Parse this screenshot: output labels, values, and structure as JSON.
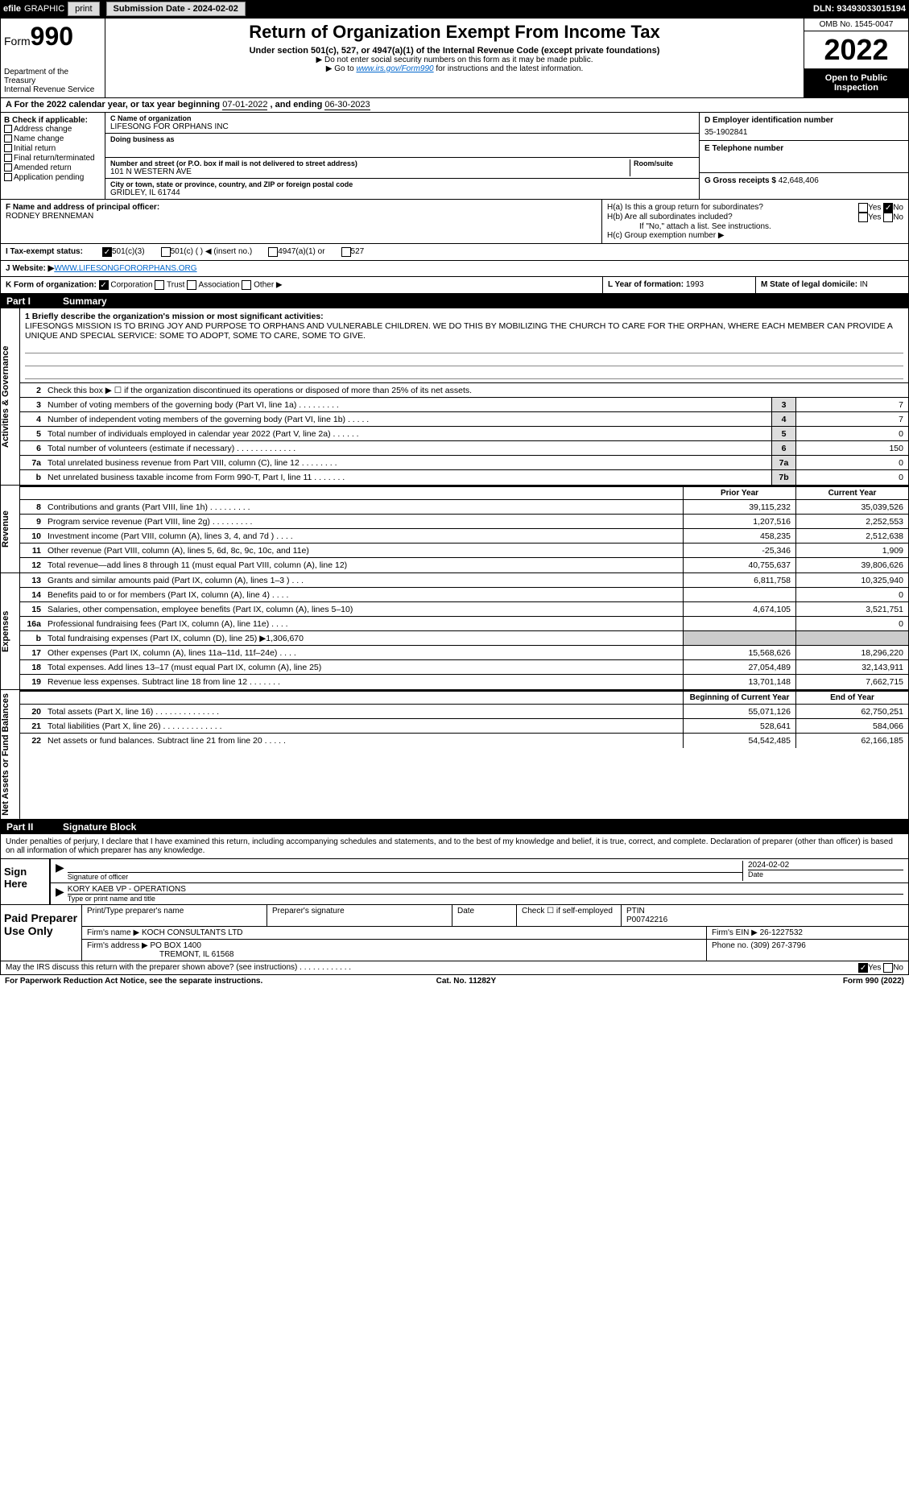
{
  "topbar": {
    "efile": "efile",
    "graphic": "GRAPHIC",
    "print": "print",
    "submission": "Submission Date - 2024-02-02",
    "dln": "DLN: 93493033015194"
  },
  "header": {
    "form_label": "Form",
    "form_num": "990",
    "dept": "Department of the Treasury",
    "irs": "Internal Revenue Service",
    "title": "Return of Organization Exempt From Income Tax",
    "subtitle": "Under section 501(c), 527, or 4947(a)(1) of the Internal Revenue Code (except private foundations)",
    "note1": "▶ Do not enter social security numbers on this form as it may be made public.",
    "note2_pre": "▶ Go to ",
    "note2_link": "www.irs.gov/Form990",
    "note2_post": " for instructions and the latest information.",
    "omb": "OMB No. 1545-0047",
    "year": "2022",
    "open": "Open to Public Inspection"
  },
  "row_a": {
    "label": "A For the 2022 calendar year, or tax year beginning ",
    "begin": "07-01-2022",
    "mid": "     , and ending ",
    "end": "06-30-2023"
  },
  "col_b": {
    "label": "B Check if applicable:",
    "opts": [
      "Address change",
      "Name change",
      "Initial return",
      "Final return/terminated",
      "Amended return",
      "Application pending"
    ]
  },
  "col_c": {
    "name_label": "C Name of organization",
    "name": "LIFESONG FOR ORPHANS INC",
    "dba_label": "Doing business as",
    "dba": "",
    "addr_label": "Number and street (or P.O. box if mail is not delivered to street address)",
    "room_label": "Room/suite",
    "addr": "101 N WESTERN AVE",
    "city_label": "City or town, state or province, country, and ZIP or foreign postal code",
    "city": "GRIDLEY, IL  61744"
  },
  "col_d": {
    "ein_label": "D Employer identification number",
    "ein": "35-1902841",
    "phone_label": "E Telephone number",
    "phone": "",
    "gross_label": "G Gross receipts $",
    "gross": "42,648,406"
  },
  "row_f": {
    "label": "F  Name and address of principal officer:",
    "name": "RODNEY BRENNEMAN"
  },
  "row_h": {
    "ha": "H(a)  Is this a group return for subordinates?",
    "hb": "H(b)  Are all subordinates included?",
    "hb_note": "If \"No,\" attach a list. See instructions.",
    "hc": "H(c)  Group exemption number ▶",
    "yes": "Yes",
    "no": "No"
  },
  "row_i": {
    "label": "I  Tax-exempt status:",
    "o1": "501(c)(3)",
    "o2": "501(c) (   ) ◀ (insert no.)",
    "o3": "4947(a)(1) or",
    "o4": "527"
  },
  "row_j": {
    "label": "J  Website: ▶ ",
    "url": "WWW.LIFESONGFORORPHANS.ORG"
  },
  "row_k": {
    "label": "K Form of organization:",
    "o1": "Corporation",
    "o2": "Trust",
    "o3": "Association",
    "o4": "Other ▶"
  },
  "row_l": {
    "label": "L Year of formation:",
    "val": "1993"
  },
  "row_m": {
    "label": "M State of legal domicile:",
    "val": "IN"
  },
  "part1": {
    "num": "Part I",
    "title": "Summary"
  },
  "side": {
    "ag": "Activities & Governance",
    "rev": "Revenue",
    "exp": "Expenses",
    "net": "Net Assets or Fund Balances"
  },
  "mission": {
    "label": "1   Briefly describe the organization's mission or most significant activities:",
    "text": "LIFESONGS MISSION IS TO BRING JOY AND PURPOSE TO ORPHANS AND VULNERABLE CHILDREN. WE DO THIS BY MOBILIZING THE CHURCH TO CARE FOR THE ORPHAN, WHERE EACH MEMBER CAN PROVIDE A UNIQUE AND SPECIAL SERVICE: SOME TO ADOPT, SOME TO CARE, SOME TO GIVE."
  },
  "lines_gov": [
    {
      "n": "2",
      "t": "Check this box ▶ ☐  if the organization discontinued its operations or disposed of more than 25% of its net assets."
    },
    {
      "n": "3",
      "t": "Number of voting members of the governing body (Part VI, line 1a)   .    .    .    .    .    .    .    .    .",
      "b": "3",
      "v": "7"
    },
    {
      "n": "4",
      "t": "Number of independent voting members of the governing body (Part VI, line 1b)   .    .    .    .    .",
      "b": "4",
      "v": "7"
    },
    {
      "n": "5",
      "t": "Total number of individuals employed in calendar year 2022 (Part V, line 2a)   .    .    .    .    .    .",
      "b": "5",
      "v": "0"
    },
    {
      "n": "6",
      "t": "Total number of volunteers (estimate if necessary)    .    .    .    .    .    .    .    .    .    .    .    .    .",
      "b": "6",
      "v": "150"
    },
    {
      "n": "7a",
      "t": "Total unrelated business revenue from Part VIII, column (C), line 12   .    .    .    .    .    .    .    .",
      "b": "7a",
      "v": "0"
    },
    {
      "n": "b",
      "t": "Net unrelated business taxable income from Form 990-T, Part I, line 11    .    .    .    .    .    .    .",
      "b": "7b",
      "v": "0"
    }
  ],
  "col_hdr": {
    "prior": "Prior Year",
    "current": "Current Year",
    "begin": "Beginning of Current Year",
    "end": "End of Year"
  },
  "lines_rev": [
    {
      "n": "8",
      "t": "Contributions and grants (Part VIII, line 1h)    .    .    .    .    .    .    .    .    .",
      "p": "39,115,232",
      "c": "35,039,526"
    },
    {
      "n": "9",
      "t": "Program service revenue (Part VIII, line 2g)   .    .    .    .    .    .    .    .    .",
      "p": "1,207,516",
      "c": "2,252,553"
    },
    {
      "n": "10",
      "t": "Investment income (Part VIII, column (A), lines 3, 4, and 7d )   .    .    .    .",
      "p": "458,235",
      "c": "2,512,638"
    },
    {
      "n": "11",
      "t": "Other revenue (Part VIII, column (A), lines 5, 6d, 8c, 9c, 10c, and 11e)",
      "p": "-25,346",
      "c": "1,909"
    },
    {
      "n": "12",
      "t": "Total revenue—add lines 8 through 11 (must equal Part VIII, column (A), line 12)",
      "p": "40,755,637",
      "c": "39,806,626"
    }
  ],
  "lines_exp": [
    {
      "n": "13",
      "t": "Grants and similar amounts paid (Part IX, column (A), lines 1–3 )   .    .    .",
      "p": "6,811,758",
      "c": "10,325,940"
    },
    {
      "n": "14",
      "t": "Benefits paid to or for members (Part IX, column (A), line 4)   .    .    .    .",
      "p": "",
      "c": "0"
    },
    {
      "n": "15",
      "t": "Salaries, other compensation, employee benefits (Part IX, column (A), lines 5–10)",
      "p": "4,674,105",
      "c": "3,521,751"
    },
    {
      "n": "16a",
      "t": "Professional fundraising fees (Part IX, column (A), line 11e)   .    .    .    .",
      "p": "",
      "c": "0"
    },
    {
      "n": "b",
      "t": "Total fundraising expenses (Part IX, column (D), line 25) ▶1,306,670",
      "grey": true
    },
    {
      "n": "17",
      "t": "Other expenses (Part IX, column (A), lines 11a–11d, 11f–24e)   .    .    .    .",
      "p": "15,568,626",
      "c": "18,296,220"
    },
    {
      "n": "18",
      "t": "Total expenses. Add lines 13–17 (must equal Part IX, column (A), line 25)",
      "p": "27,054,489",
      "c": "32,143,911"
    },
    {
      "n": "19",
      "t": "Revenue less expenses. Subtract line 18 from line 12   .    .    .    .    .    .    .",
      "p": "13,701,148",
      "c": "7,662,715"
    }
  ],
  "lines_net": [
    {
      "n": "20",
      "t": "Total assets (Part X, line 16)   .    .    .    .    .    .    .    .    .    .    .    .    .    .",
      "p": "55,071,126",
      "c": "62,750,251"
    },
    {
      "n": "21",
      "t": "Total liabilities (Part X, line 26)   .    .    .    .    .    .    .    .    .    .    .    .    .",
      "p": "528,641",
      "c": "584,066"
    },
    {
      "n": "22",
      "t": "Net assets or fund balances. Subtract line 21 from line 20   .    .    .    .    .",
      "p": "54,542,485",
      "c": "62,166,185"
    }
  ],
  "part2": {
    "num": "Part II",
    "title": "Signature Block"
  },
  "sig": {
    "intro": "Under penalties of perjury, I declare that I have examined this return, including accompanying schedules and statements, and to the best of my knowledge and belief, it is true, correct, and complete. Declaration of preparer (other than officer) is based on all information of which preparer has any knowledge.",
    "sign_here": "Sign Here",
    "sig_officer": "Signature of officer",
    "date_label": "Date",
    "date": "2024-02-02",
    "name": "KORY KAEB  VP - OPERATIONS",
    "name_label": "Type or print name and title"
  },
  "paid": {
    "label": "Paid Preparer Use Only",
    "h1": "Print/Type preparer's name",
    "h2": "Preparer's signature",
    "h3": "Date",
    "h4_pre": "Check ☐ if self-employed",
    "h5": "PTIN",
    "ptin": "P00742216",
    "firm_label": "Firm's name    ▶",
    "firm": "KOCH CONSULTANTS LTD",
    "ein_label": "Firm's EIN ▶",
    "ein": "26-1227532",
    "addr_label": "Firm's address ▶",
    "addr1": "PO BOX 1400",
    "addr2": "TREMONT, IL  61568",
    "phone_label": "Phone no.",
    "phone": "(309) 267-3796"
  },
  "footer": {
    "discuss": "May the IRS discuss this return with the preparer shown above? (see instructions)   .    .    .    .    .    .    .    .    .    .    .    .",
    "yes": "Yes",
    "no": "No",
    "pra": "For Paperwork Reduction Act Notice, see the separate instructions.",
    "cat": "Cat. No. 11282Y",
    "form": "Form 990 (2022)"
  }
}
